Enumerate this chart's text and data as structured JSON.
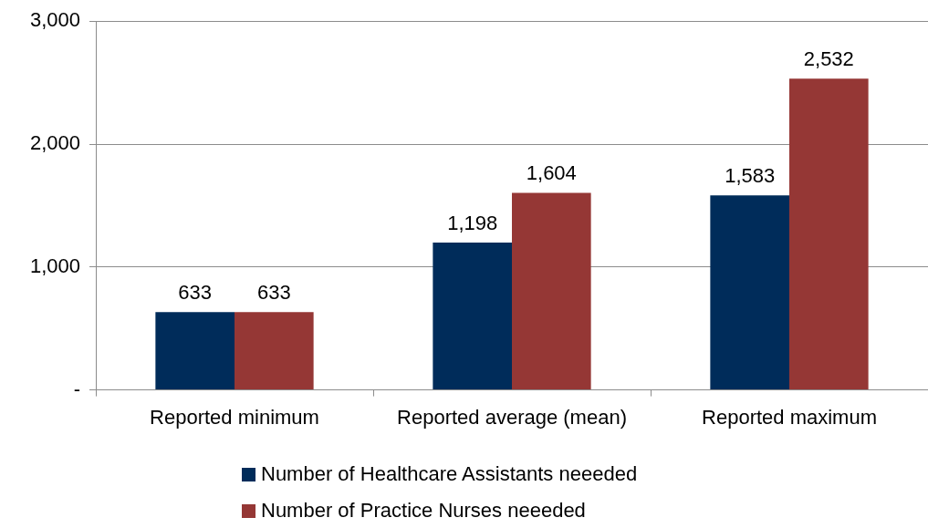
{
  "chart_data": {
    "type": "bar",
    "categories": [
      "Reported minimum",
      "Reported average (mean)",
      "Reported maximum"
    ],
    "series": [
      {
        "name": "Number of Healthcare Assistants neeeded",
        "color": "#002c5a",
        "values": [
          633,
          1198,
          1583
        ],
        "value_labels": [
          "633",
          "1,198",
          "1,583"
        ]
      },
      {
        "name": "Number of Practice Nurses neeeded",
        "color": "#953735",
        "values": [
          633,
          1604,
          2532
        ],
        "value_labels": [
          "633",
          "1,604",
          "2,532"
        ]
      }
    ],
    "ylim": [
      0,
      3000
    ],
    "yticks": [
      {
        "value": 0,
        "label": "-"
      },
      {
        "value": 1000,
        "label": "1,000"
      },
      {
        "value": 2000,
        "label": "2,000"
      },
      {
        "value": 3000,
        "label": "3,000"
      }
    ],
    "grid": "y",
    "legend": "bottom"
  }
}
